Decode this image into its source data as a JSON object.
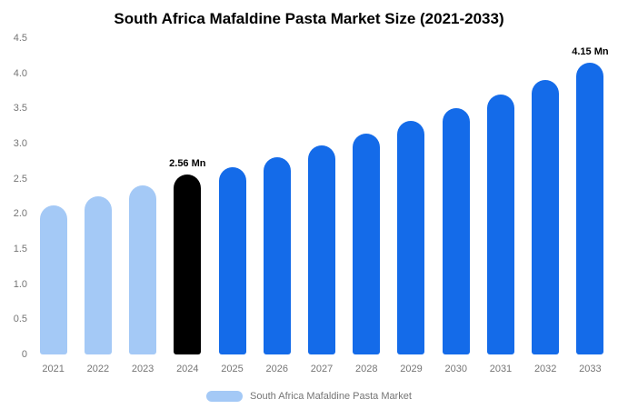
{
  "title": "South Africa Mafaldine Pasta Market Size (2021-2033)",
  "chart_data": {
    "type": "bar",
    "title": "South Africa Mafaldine Pasta Market Size (2021-2033)",
    "categories": [
      "2021",
      "2022",
      "2023",
      "2024",
      "2025",
      "2026",
      "2027",
      "2028",
      "2029",
      "2030",
      "2031",
      "2032",
      "2033"
    ],
    "values": [
      2.12,
      2.25,
      2.4,
      2.56,
      2.67,
      2.8,
      2.98,
      3.14,
      3.32,
      3.5,
      3.7,
      3.9,
      4.15
    ],
    "bar_colors": [
      "#A4C9F6",
      "#A4C9F6",
      "#A4C9F6",
      "#000000",
      "#146BE9",
      "#146BE9",
      "#146BE9",
      "#146BE9",
      "#146BE9",
      "#146BE9",
      "#146BE9",
      "#146BE9",
      "#146BE9"
    ],
    "annotations": [
      {
        "index": 3,
        "text": "2.56 Mn"
      },
      {
        "index": 12,
        "text": "4.15 Mn"
      }
    ],
    "xlabel": "",
    "ylabel": "",
    "ylim": [
      0,
      4.5
    ],
    "ytick_labels": [
      "0",
      "0.5",
      "1.0",
      "1.5",
      "2.0",
      "2.5",
      "3.0",
      "3.5",
      "4.0",
      "4.5"
    ],
    "ytick_values": [
      0,
      0.5,
      1.0,
      1.5,
      2.0,
      2.5,
      3.0,
      3.5,
      4.0,
      4.5
    ],
    "grid": false,
    "legend_position": "bottom"
  },
  "legend": {
    "label": "South Africa Mafaldine Pasta Market",
    "swatch_color": "#A4C9F6"
  },
  "colors": {
    "past_bars": "#A4C9F6",
    "highlight_bar": "#000000",
    "forecast_bars": "#146BE9",
    "axis_text": "#757575",
    "title_text": "#000000",
    "background": "#FFFFFF"
  }
}
